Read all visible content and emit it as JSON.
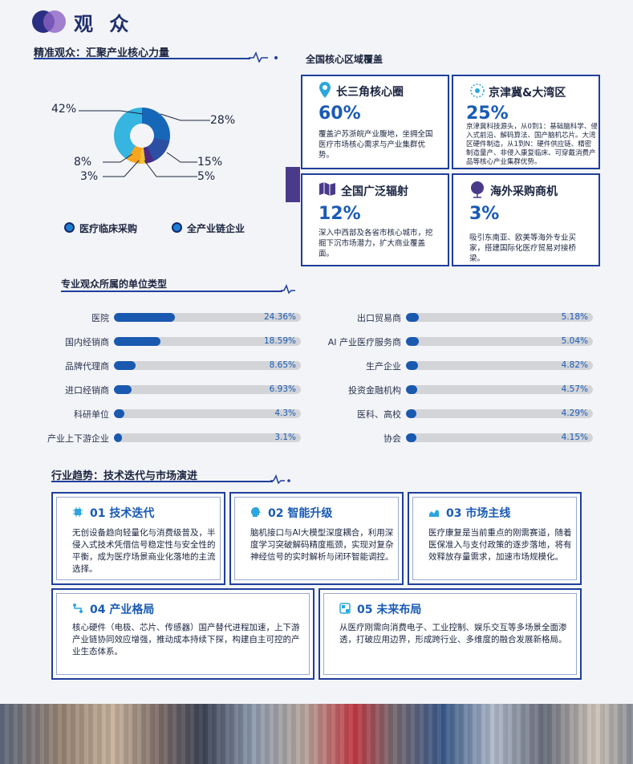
{
  "header": {
    "title": "观 众"
  },
  "section1": {
    "title": "精准观众：汇聚产业核心力量",
    "legend": [
      {
        "label": "医疗临床采购"
      },
      {
        "label": "全产业链企业"
      }
    ]
  },
  "chart_data": [
    {
      "type": "pie",
      "labels": [
        "28%",
        "15%",
        "5%",
        "3%",
        "8%",
        "42%"
      ],
      "values": [
        28,
        15,
        5,
        3,
        8,
        42
      ],
      "colors": [
        "#1767b8",
        "#2b4fa3",
        "#4b2a85",
        "#f1c232",
        "#f7a51e",
        "#35b5e0"
      ]
    },
    {
      "type": "bar",
      "title": "专业观众所属的单位类型",
      "categories": [
        "医院",
        "国内经销商",
        "品牌代理商",
        "进口经销商",
        "科研单位",
        "产业上下游企业",
        "出口贸易商",
        "AI 产业医疗服务商",
        "生产企业",
        "投资金融机构",
        "医科、高校",
        "协会"
      ],
      "values": [
        24.36,
        18.59,
        8.65,
        6.93,
        4.3,
        3.1,
        5.18,
        5.04,
        4.82,
        4.57,
        4.29,
        4.15
      ],
      "value_labels": [
        "24.36%",
        "18.59%",
        "8.65%",
        "6.93%",
        "4.3%",
        "3.1%",
        "5.18%",
        "5.04%",
        "4.82%",
        "4.57%",
        "4.29%",
        "4.15%"
      ]
    }
  ],
  "regions": {
    "title": "全国核心区域覆盖",
    "cards": [
      {
        "title": "长三角核心圈",
        "pct": "60%",
        "desc": "覆盖沪苏浙皖产业腹地，坐拥全国医疗市场核心需求与产业集群优势。",
        "icon": "location-pin-icon"
      },
      {
        "title": "京津冀&大湾区",
        "pct": "25%",
        "desc": "京津冀科技源头，从0到1：基础脑科学、侵入式前沿、解码算法、国产脑机芯片。大湾区硬件制造，从1到N：硬件供应链、精密制造量产、非侵入康复临床、可穿戴消费产品等核心产业集群优势。",
        "icon": "target-icon"
      },
      {
        "title": "全国广泛辐射",
        "pct": "12%",
        "desc": "深入中西部及各省市核心城市，挖掘下沉市场潜力，扩大商业覆盖面。",
        "icon": "map-icon"
      },
      {
        "title": "海外采购商机",
        "pct": "3%",
        "desc": "吸引东南亚、欧美等海外专业买家，搭建国际化医疗贸易对接桥梁。",
        "icon": "globe-icon"
      }
    ]
  },
  "trends": {
    "title": "行业趋势：技术迭代与市场演进",
    "items": [
      {
        "title": "01 技术迭代",
        "desc": "无创设备趋向轻量化与消费级普及，半侵入式技术凭借信号稳定性与安全性的平衡，成为医疗场景商业化落地的主流选择。",
        "icon": "chip-icon"
      },
      {
        "title": "02 智能升级",
        "desc": "脑机接口与AI大模型深度耦合，利用深度学习突破解码精度瓶颈，实现对复杂神经信号的实时解析与闭环智能调控。",
        "icon": "brain-head-icon"
      },
      {
        "title": "03 市场主线",
        "desc": "医疗康复是当前重点的刚需赛道，随着医保准入与支付政策的逐步落地，将有效释放存量需求，加速市场规模化。",
        "icon": "chart-icon"
      },
      {
        "title": "04 产业格局",
        "desc": "核心硬件（电极、芯片、传感器）国产替代进程加速，上下游产业链协同效应增强，推动成本持续下探，构建自主可控的产业生态体系。",
        "icon": "flow-icon"
      },
      {
        "title": "05 未来布局",
        "desc": "从医疗刚需向消费电子、工业控制、娱乐交互等多场景全面渗透，打破应用边界，形成跨行业、多维度的融合发展新格局。",
        "icon": "layout-icon"
      }
    ]
  }
}
